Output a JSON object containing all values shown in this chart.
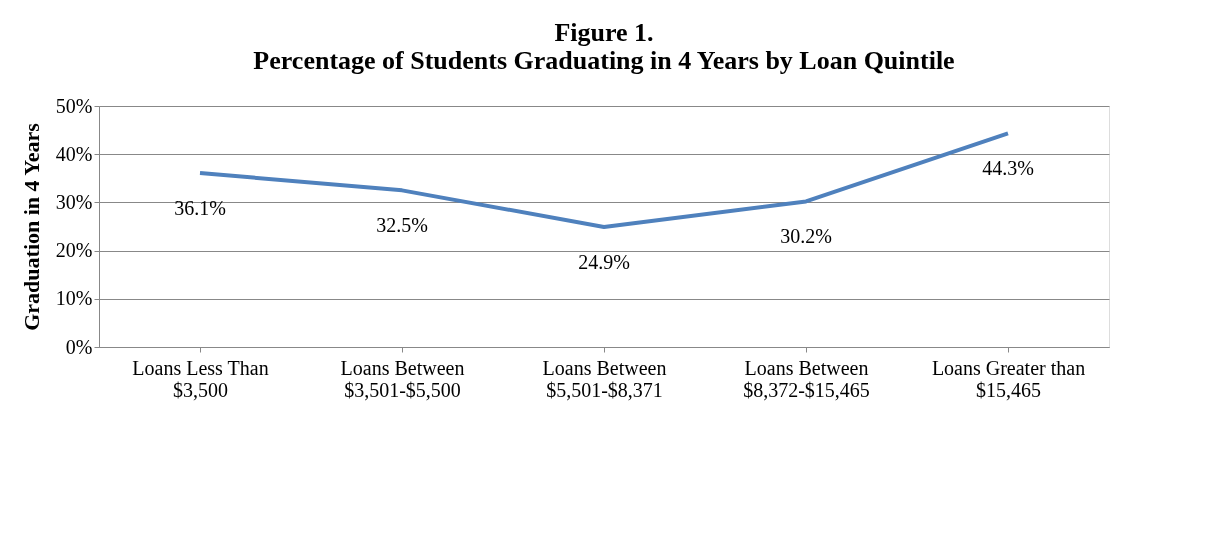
{
  "chart_data": {
    "type": "line",
    "title": [
      "Figure 1.",
      "Percentage of Students Graduating in 4 Years by Loan Quintile"
    ],
    "ylabel": "Graduation in 4 Years",
    "categories": [
      "Loans Less Than $3,500",
      "Loans Between $3,501-$5,500",
      "Loans Between $5,501-$8,371",
      "Loans Between $8,372-$15,465",
      "Loans Greater than $15,465"
    ],
    "series": [
      {
        "color": "#4f81bd",
        "values": [
          36.1,
          32.5,
          24.9,
          30.2,
          44.3
        ],
        "value_labels": [
          "36.1%",
          "32.5%",
          "24.9%",
          "30.2%",
          "44.3%"
        ]
      }
    ],
    "ylim": [
      0,
      50
    ],
    "yticks": [
      {
        "value": 0,
        "label": "0%"
      },
      {
        "value": 10,
        "label": "10%"
      },
      {
        "value": 20,
        "label": "20%"
      },
      {
        "value": 30,
        "label": "30%"
      },
      {
        "value": 40,
        "label": "40%"
      },
      {
        "value": 50,
        "label": "50%"
      }
    ],
    "grid": "y",
    "marker": "none",
    "line_style": "solid"
  }
}
